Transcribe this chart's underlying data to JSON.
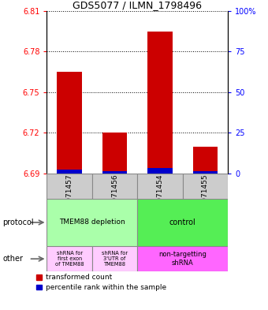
{
  "title": "GDS5077 / ILMN_1798496",
  "samples": [
    "GSM1071457",
    "GSM1071456",
    "GSM1071454",
    "GSM1071455"
  ],
  "red_values": [
    6.765,
    6.72,
    6.795,
    6.71
  ],
  "blue_values": [
    6.693,
    6.692,
    6.694,
    6.692
  ],
  "ymin": 6.69,
  "ymax": 6.81,
  "yticks_left": [
    6.69,
    6.72,
    6.75,
    6.78,
    6.81
  ],
  "yticks_right": [
    0,
    25,
    50,
    75,
    100
  ],
  "protocol_labels": [
    "TMEM88 depletion",
    "control"
  ],
  "protocol_colors_hex": [
    "#aaffaa",
    "#55ee55"
  ],
  "other_labels": [
    "shRNA for\nfirst exon\nof TMEM88",
    "shRNA for\n3'UTR of\nTMEM88",
    "non-targetting\nshRNA"
  ],
  "other_colors_hex": [
    "#ffccff",
    "#ffccff",
    "#ff66ff"
  ],
  "legend_red": "transformed count",
  "legend_blue": "percentile rank within the sample",
  "red_color": "#cc0000",
  "blue_color": "#0000cc",
  "sample_bg": "#cccccc",
  "bar_width": 0.55
}
